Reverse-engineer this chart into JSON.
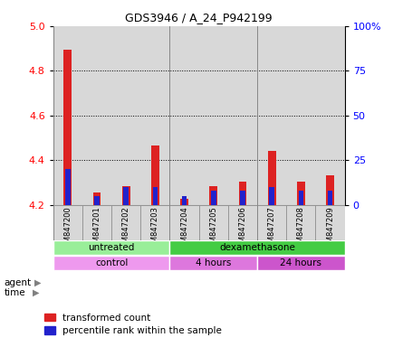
{
  "title": "GDS3946 / A_24_P942199",
  "samples": [
    "GSM847200",
    "GSM847201",
    "GSM847202",
    "GSM847203",
    "GSM847204",
    "GSM847205",
    "GSM847206",
    "GSM847207",
    "GSM847208",
    "GSM847209"
  ],
  "transformed_count": [
    4.895,
    4.255,
    4.285,
    4.465,
    4.225,
    4.285,
    4.305,
    4.44,
    4.305,
    4.33
  ],
  "percentile_rank": [
    20,
    5,
    10,
    10,
    5,
    8,
    8,
    10,
    8,
    8
  ],
  "ylim_left": [
    4.2,
    5.0
  ],
  "ylim_right": [
    0,
    100
  ],
  "yticks_left": [
    4.2,
    4.4,
    4.6,
    4.8,
    5.0
  ],
  "yticks_right": [
    0,
    25,
    50,
    75,
    100
  ],
  "ytick_labels_right": [
    "0",
    "25",
    "50",
    "75",
    "100%"
  ],
  "bar_color_red": "#dd2222",
  "bar_color_blue": "#2222cc",
  "background_color": "#ffffff",
  "agent_groups": [
    {
      "label": "untreated",
      "start": 0,
      "end": 4,
      "color": "#99ee99"
    },
    {
      "label": "dexamethasone",
      "start": 4,
      "end": 10,
      "color": "#44cc44"
    }
  ],
  "time_groups": [
    {
      "label": "control",
      "start": 0,
      "end": 4,
      "color": "#ee99ee"
    },
    {
      "label": "4 hours",
      "start": 4,
      "end": 7,
      "color": "#dd77dd"
    },
    {
      "label": "24 hours",
      "start": 7,
      "end": 10,
      "color": "#cc55cc"
    }
  ],
  "legend_red_label": "transformed count",
  "legend_blue_label": "percentile rank within the sample",
  "bar_width": 0.5,
  "baseline": 4.2
}
